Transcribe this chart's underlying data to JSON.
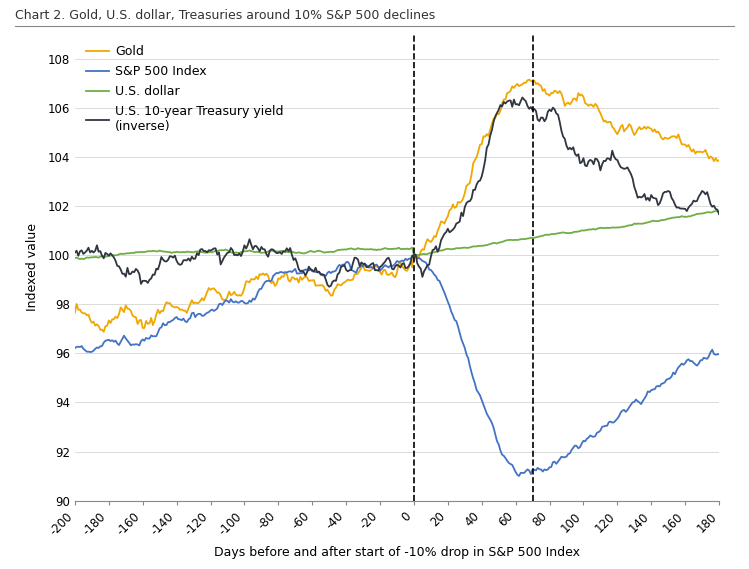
{
  "title": "Chart 2. Gold, U.S. dollar, Treasuries around 10% S&P 500 declines",
  "xlabel": "Days before and after start of -10% drop in S&P 500 Index",
  "ylabel": "Indexed value",
  "x_start": -200,
  "x_end": 180,
  "x_ticks": [
    -200,
    -180,
    -160,
    -140,
    -120,
    -100,
    -80,
    -60,
    -40,
    -20,
    0,
    20,
    40,
    60,
    80,
    100,
    120,
    140,
    160,
    180
  ],
  "y_ticks": [
    90,
    92,
    94,
    96,
    98,
    100,
    102,
    104,
    106,
    108
  ],
  "ylim": [
    90,
    109
  ],
  "dashed_lines": [
    0,
    70
  ],
  "colors": {
    "gold": "#F0A800",
    "sp500": "#4472C4",
    "dollar": "#70AD47",
    "treasury": "#2F3640"
  },
  "line_width": 1.3,
  "legend_labels": [
    "Gold",
    "S&P 500 Index",
    "U.S. dollar",
    "U.S. 10-year Treasury yield\n(inverse)"
  ],
  "background_color": "#FFFFFF",
  "title_fontsize": 9,
  "axis_fontsize": 9,
  "tick_fontsize": 8.5
}
